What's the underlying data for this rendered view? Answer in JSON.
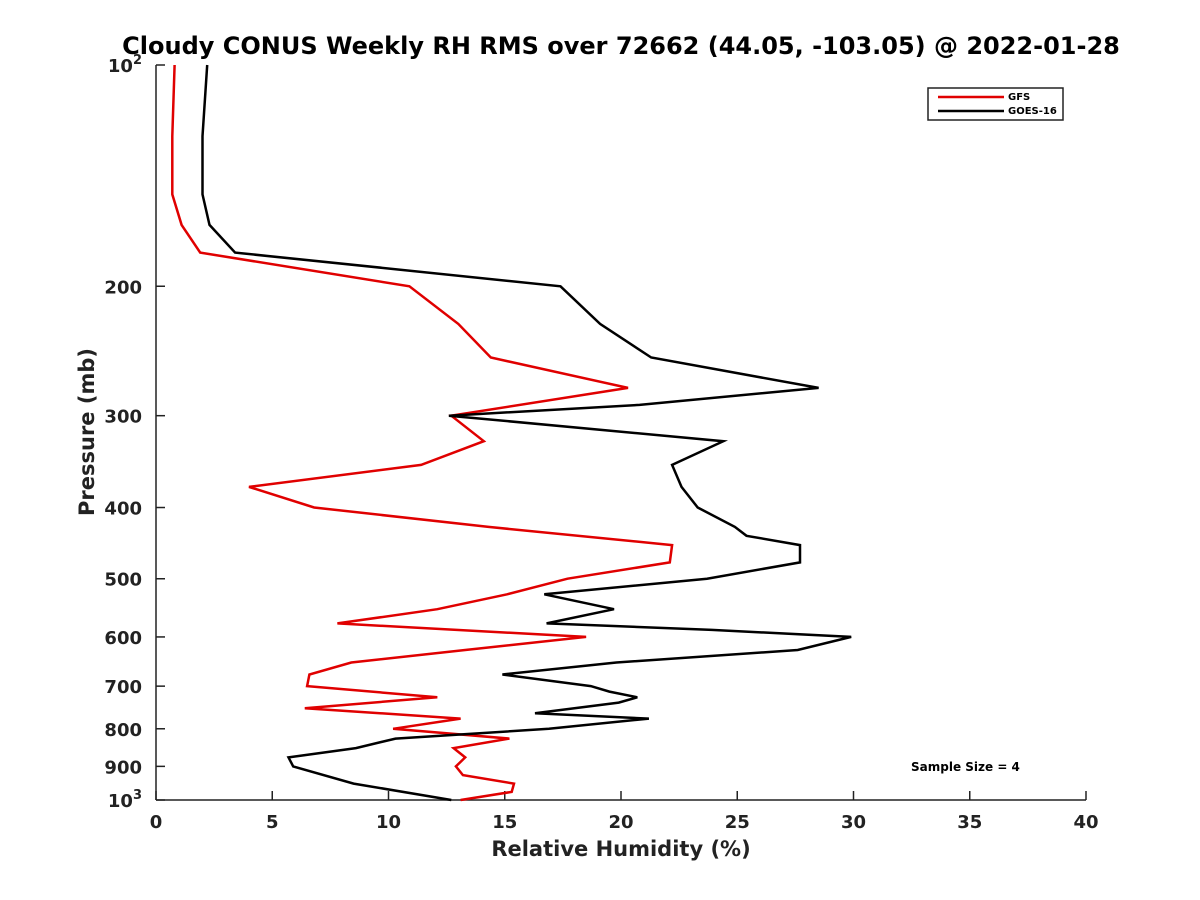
{
  "chart_data": {
    "type": "line",
    "title": "Cloudy CONUS Weekly RH RMS over 72662 (44.05, -103.05) @ 2022-01-28",
    "xlabel": "Relative Humidity (%)",
    "ylabel": "Pressure (mb)",
    "xlim": [
      0,
      40
    ],
    "ylim": [
      100,
      1000
    ],
    "y_scale": "log",
    "y_reversed": true,
    "grid": false,
    "legend_position": "top-right",
    "x_ticks": [
      "0",
      "5",
      "10",
      "15",
      "20",
      "25",
      "30",
      "35",
      "40"
    ],
    "y_ticks": [
      {
        "value": 100,
        "base": "10",
        "exp": "2"
      },
      {
        "value": 200,
        "label": "200"
      },
      {
        "value": 300,
        "label": "300"
      },
      {
        "value": 400,
        "label": "400"
      },
      {
        "value": 500,
        "label": "500"
      },
      {
        "value": 600,
        "label": "600"
      },
      {
        "value": 700,
        "label": "700"
      },
      {
        "value": 800,
        "label": "800"
      },
      {
        "value": 900,
        "label": "900"
      },
      {
        "value": 1000,
        "base": "10",
        "exp": "3"
      }
    ],
    "series": [
      {
        "name": "GFS",
        "color": "#e00000",
        "points": [
          [
            0.8,
            100
          ],
          [
            0.7,
            125
          ],
          [
            0.7,
            150
          ],
          [
            1.1,
            165
          ],
          [
            1.9,
            180
          ],
          [
            10.9,
            200
          ],
          [
            13.0,
            225
          ],
          [
            14.4,
            250
          ],
          [
            20.3,
            275
          ],
          [
            12.7,
            300
          ],
          [
            14.1,
            325
          ],
          [
            11.4,
            350
          ],
          [
            4.0,
            375
          ],
          [
            6.8,
            400
          ],
          [
            14.3,
            425
          ],
          [
            22.2,
            450
          ],
          [
            22.1,
            475
          ],
          [
            17.7,
            500
          ],
          [
            15.1,
            525
          ],
          [
            12.1,
            550
          ],
          [
            7.8,
            575
          ],
          [
            18.5,
            600
          ],
          [
            13.3,
            625
          ],
          [
            8.4,
            650
          ],
          [
            6.6,
            675
          ],
          [
            6.5,
            700
          ],
          [
            12.1,
            725
          ],
          [
            6.4,
            750
          ],
          [
            13.1,
            775
          ],
          [
            10.2,
            800
          ],
          [
            15.2,
            825
          ],
          [
            12.8,
            850
          ],
          [
            13.3,
            875
          ],
          [
            12.9,
            900
          ],
          [
            13.2,
            925
          ],
          [
            15.4,
            950
          ],
          [
            15.3,
            975
          ],
          [
            13.1,
            1000
          ]
        ]
      },
      {
        "name": "GOES-16",
        "color": "#000000",
        "points": [
          [
            2.2,
            100
          ],
          [
            2.0,
            125
          ],
          [
            2.0,
            150
          ],
          [
            2.3,
            165
          ],
          [
            3.4,
            180
          ],
          [
            17.4,
            200
          ],
          [
            19.1,
            225
          ],
          [
            21.3,
            250
          ],
          [
            28.5,
            275
          ],
          [
            20.8,
            290
          ],
          [
            12.6,
            300
          ],
          [
            24.4,
            325
          ],
          [
            22.2,
            350
          ],
          [
            22.6,
            375
          ],
          [
            23.3,
            400
          ],
          [
            24.9,
            425
          ],
          [
            25.4,
            437
          ],
          [
            27.7,
            450
          ],
          [
            27.7,
            475
          ],
          [
            23.7,
            500
          ],
          [
            16.7,
            525
          ],
          [
            19.7,
            550
          ],
          [
            16.8,
            575
          ],
          [
            23.9,
            587
          ],
          [
            29.9,
            600
          ],
          [
            27.6,
            625
          ],
          [
            19.8,
            650
          ],
          [
            14.9,
            675
          ],
          [
            18.7,
            700
          ],
          [
            19.5,
            712
          ],
          [
            20.7,
            725
          ],
          [
            19.9,
            737
          ],
          [
            16.3,
            762
          ],
          [
            21.2,
            775
          ],
          [
            16.9,
            800
          ],
          [
            10.3,
            825
          ],
          [
            8.6,
            850
          ],
          [
            5.7,
            875
          ],
          [
            5.9,
            900
          ],
          [
            8.5,
            950
          ],
          [
            12.7,
            1000
          ]
        ]
      }
    ],
    "annotation": "Sample Size = 4"
  }
}
